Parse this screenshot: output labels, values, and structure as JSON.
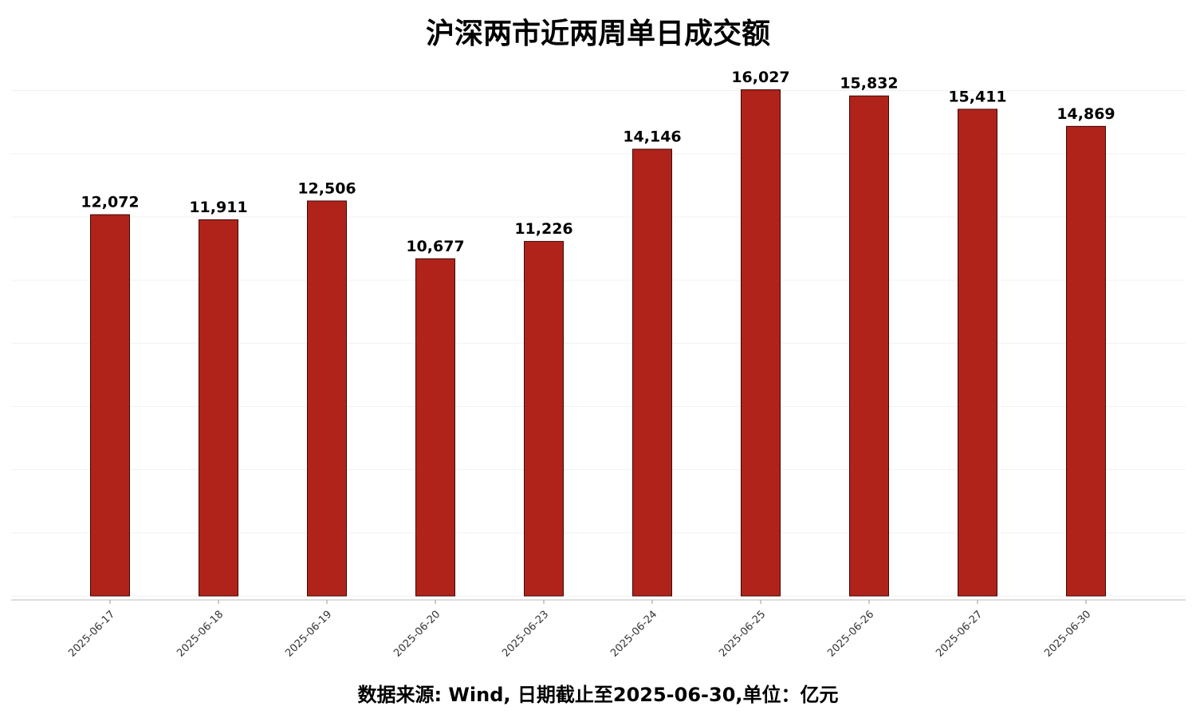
{
  "chart_data": {
    "type": "bar",
    "title": "沪深两市近两周单日成交额",
    "note": "数据来源: Wind, 日期截止至2025-06-30,单位：亿元",
    "categories": [
      "2025-06-17",
      "2025-06-18",
      "2025-06-19",
      "2025-06-20",
      "2025-06-23",
      "2025-06-24",
      "2025-06-25",
      "2025-06-26",
      "2025-06-27",
      "2025-06-30"
    ],
    "values": [
      12072,
      11911,
      12506,
      10677,
      11226,
      14146,
      16027,
      15832,
      15411,
      14869
    ],
    "value_labels": [
      "12,072",
      "11,911",
      "12,506",
      "10,677",
      "11,226",
      "14,146",
      "16,027",
      "15,832",
      "15,411",
      "14,869"
    ],
    "color": "#b0231a",
    "ylim": [
      0,
      17000
    ],
    "yticks": [
      0,
      2000,
      4000,
      6000,
      8000,
      10000,
      12000,
      14000,
      16000
    ],
    "grid": true
  }
}
